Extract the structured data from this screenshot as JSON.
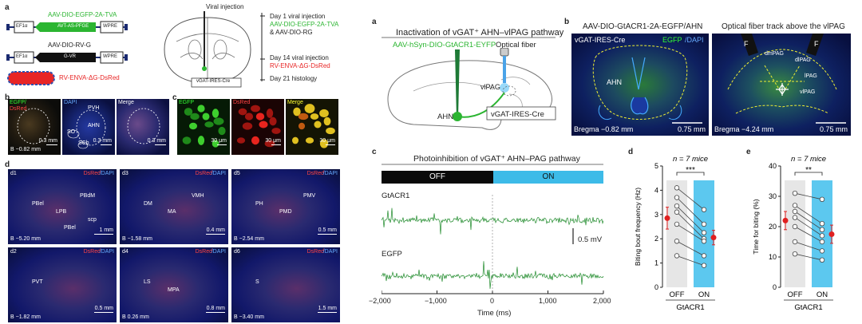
{
  "panel_a_left": {
    "label": "a",
    "constructs": [
      {
        "ef": "EF1α",
        "insert": "AAV-DIO-EGFP-2A-TVA",
        "insert_mirror": "AVT-AS-PFGE",
        "wpre": "WPRE",
        "name": "AAV-DIO-EGFP-2A-TVA"
      },
      {
        "ef": "EF1α",
        "insert": "AAV-DIO-RV-G",
        "insert_mirror": "G-VR",
        "wpre": "WPRE",
        "name": "AAV-DIO-RV-G"
      }
    ],
    "rv": "RV-ENVA-ΔG-DsRed",
    "injection_label": "Viral injection",
    "mouse_line": "vGAT-IRES-Cre",
    "timeline": [
      {
        "day": "Day 1 viral injection",
        "l1": "AAV-DIO-EGFP-2A-TVA",
        "l2": "& AAV-DIO-RG"
      },
      {
        "day": "Day 14 viral injection",
        "l1": "RV-ENVA-ΔG-DsRed",
        "l2": ""
      },
      {
        "day": "Day 21 histology",
        "l1": "",
        "l2": ""
      }
    ]
  },
  "panel_b_left": {
    "label": "b",
    "tiles": [
      {
        "l1": "EGFP/",
        "l2": "DsRed",
        "bregma": "B −0.82 mm",
        "scale": "0.3 mm"
      },
      {
        "l1": "DAPI",
        "regions": [
          "PVH",
          "AHN",
          "SO",
          "SCh"
        ],
        "scale": "0.3 mm"
      },
      {
        "l1": "Merge",
        "scale": "0.3 mm"
      }
    ]
  },
  "panel_c_left": {
    "label": "c",
    "tiles": [
      {
        "l1": "EGFP",
        "scale": "30 μm"
      },
      {
        "l1": "DsRed",
        "scale": "30 μm"
      },
      {
        "l1": "Merge",
        "scale": "30 μm"
      }
    ]
  },
  "panel_d_left": {
    "label": "d",
    "tiles": [
      {
        "id": "d1",
        "regions": [
          "PBel",
          "LPB",
          "PBdM",
          "PBel",
          "scp"
        ],
        "bregma": "B −5.20 mm",
        "scale": "1 mm"
      },
      {
        "id": "d3",
        "regions": [
          "DM",
          "MA",
          "VMH"
        ],
        "bregma": "B −1.58 mm",
        "scale": "0.4 mm"
      },
      {
        "id": "d5",
        "regions": [
          "PH",
          "PMD",
          "PMV"
        ],
        "bregma": "B −2.54 mm",
        "scale": "0.5 mm"
      },
      {
        "id": "d2",
        "regions": [
          "PVT"
        ],
        "bregma": "B −1.82 mm",
        "scale": "0.5 mm"
      },
      {
        "id": "d4",
        "regions": [
          "LS",
          "MPA"
        ],
        "bregma": "B 0.26 mm",
        "scale": "0.8 mm"
      },
      {
        "id": "d6",
        "regions": [
          "S"
        ],
        "bregma": "B −3.40 mm",
        "scale": "1.5 mm"
      }
    ],
    "stain": "DsRed",
    "stain2": "/DAPI"
  },
  "panel_a_right": {
    "label": "a",
    "title": "Inactivation of vGAT⁺ AHN–vlPAG pathway",
    "virus": "AAV-hSyn-DIO-GtACR1-EYFP",
    "fiber": "Optical fiber",
    "target": "vlPAG",
    "source": "AHN",
    "line": "vGAT-IRES-Cre"
  },
  "panel_b_right": {
    "label": "b",
    "title1": "AAV-DIO-GtACR1-2A-EGFP/AHN",
    "title2": "Optical fiber track above the vlPAG",
    "tile1": {
      "tag": "vGAT-IRES-Cre",
      "stain1": "EGFP",
      "stain2": "/DAPI",
      "region": "AHN",
      "bregma": "Bregma −0.82 mm",
      "scale": "0.75 mm"
    },
    "tile2": {
      "regions": [
        "dmPAG",
        "dlPAG",
        "lPAG",
        "vlPAG"
      ],
      "fiber": "F",
      "bregma": "Bregma −4.24 mm",
      "scale": "0.75 mm"
    }
  },
  "panel_c_right": {
    "label": "c",
    "title": "Photoinhibition of vGAT⁺ AHN–PAG pathway",
    "off": "OFF",
    "on": "ON",
    "trace1": "GtACR1",
    "trace2": "EGFP",
    "scalebar": "0.5 mV",
    "xlabel": "Time (ms)",
    "xticks": [
      "−2,000",
      "−1,000",
      "0",
      "1,000",
      "2,000"
    ]
  },
  "chart_data": [
    {
      "type": "scatter",
      "panel": "d",
      "title": "n = 7 mice",
      "ylabel": "Biting bout frequency (Hz)",
      "xlabel": "GtACR1",
      "categories": [
        "OFF",
        "ON"
      ],
      "ylim": [
        0,
        5
      ],
      "yticks": [
        0,
        1,
        2,
        3,
        4,
        5
      ],
      "significance": "***",
      "pairs": [
        [
          4.1,
          3.2
        ],
        [
          3.7,
          2.6
        ],
        [
          3.35,
          2.25
        ],
        [
          3.1,
          2.0
        ],
        [
          2.6,
          1.9
        ],
        [
          1.9,
          1.3
        ],
        [
          1.3,
          0.9
        ]
      ],
      "mean": [
        2.85,
        2.05
      ],
      "err": [
        0.45,
        0.3
      ]
    },
    {
      "type": "scatter",
      "panel": "e",
      "title": "n = 7 mice",
      "ylabel": "Time for biting (%)",
      "xlabel": "GtACR1",
      "categories": [
        "OFF",
        "ON"
      ],
      "ylim": [
        0,
        40
      ],
      "yticks": [
        0,
        10,
        20,
        30,
        40
      ],
      "significance": "**",
      "pairs": [
        [
          31,
          29
        ],
        [
          27,
          21
        ],
        [
          25,
          19
        ],
        [
          23,
          17
        ],
        [
          20,
          15
        ],
        [
          15,
          12
        ],
        [
          11,
          9
        ]
      ],
      "mean": [
        22,
        17.5
      ],
      "err": [
        3,
        3
      ]
    }
  ]
}
